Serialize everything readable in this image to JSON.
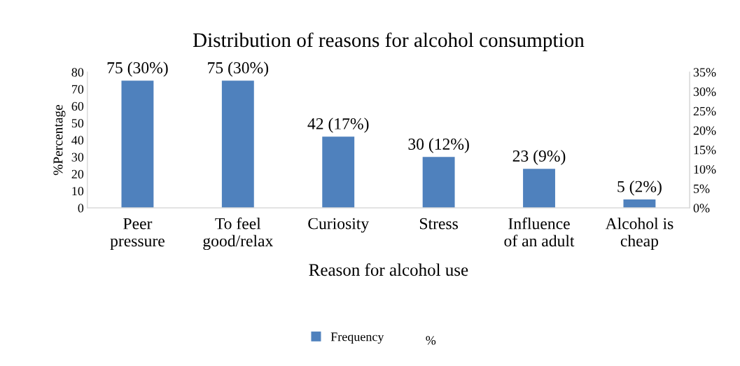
{
  "chart_data": {
    "type": "bar",
    "title": "Distribution of reasons for alcohol consumption",
    "xlabel": "Reason for alcohol use",
    "ylabel": "%Percentage",
    "categories": [
      "Peer\npressure",
      "To feel\ngood/relax",
      "Curiosity",
      "Stress",
      "Influence\nof an adult",
      "Alcohol is\ncheap"
    ],
    "series": [
      {
        "name": "Frequency",
        "color": "#4f81bd",
        "values": [
          75,
          75,
          42,
          30,
          23,
          5
        ],
        "value_labels": [
          "75 (30%)",
          "75 (30%)",
          "42 (17%)",
          "30 (12%)",
          "23 (9%)",
          "5 (2%)"
        ]
      }
    ],
    "ylim": [
      0,
      80
    ],
    "yticks": [
      0,
      10,
      20,
      30,
      40,
      50,
      60,
      70,
      80
    ],
    "y2lim": [
      0,
      35
    ],
    "y2ticks": [
      {
        "value": 0,
        "label": "0%"
      },
      {
        "value": 5,
        "label": "5%"
      },
      {
        "value": 10,
        "label": "10%"
      },
      {
        "value": 15,
        "label": "15%"
      },
      {
        "value": 20,
        "label": "20%"
      },
      {
        "value": 25,
        "label": "25%"
      },
      {
        "value": 30,
        "label": "30%"
      },
      {
        "value": 35,
        "label": "35%"
      }
    ],
    "annotations": [
      "%"
    ],
    "grid": false,
    "legend": "bottom"
  }
}
